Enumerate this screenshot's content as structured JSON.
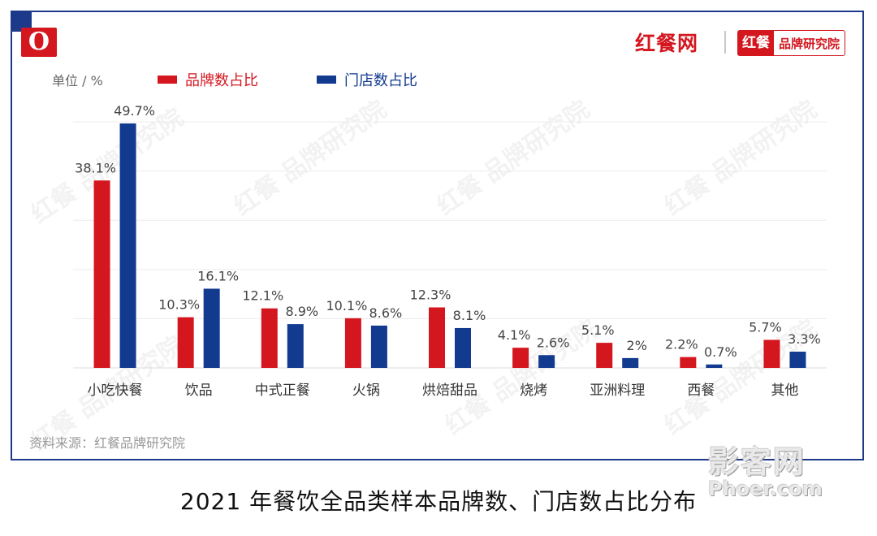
{
  "brand": {
    "logo_letter": "O",
    "name": "红餐网",
    "sub_tag": "红餐",
    "sub_text": "品牌研究院",
    "watermark": "红餐 品牌研究院"
  },
  "unit_label": "单位 / %",
  "source_note": "资料来源：红餐品牌研究院",
  "title": "2021 年餐饮全品类样本品牌数、门店数占比分布",
  "site_mark": {
    "text": "影客网",
    "url": "Phoer.com"
  },
  "colors": {
    "red": "#d4161f",
    "blue": "#123a8f",
    "frame": "#1d3a8a"
  },
  "chart_data": {
    "type": "bar",
    "categories": [
      "小吃快餐",
      "饮品",
      "中式正餐",
      "火锅",
      "烘焙甜品",
      "烧烤",
      "亚洲料理",
      "西餐",
      "其他"
    ],
    "series": [
      {
        "name": "品牌数占比",
        "color": "#d4161f",
        "values": [
          38.1,
          10.3,
          12.1,
          10.1,
          12.3,
          4.1,
          5.1,
          2.2,
          5.7
        ]
      },
      {
        "name": "门店数占比",
        "color": "#123a8f",
        "values": [
          49.7,
          16.1,
          8.9,
          8.6,
          8.1,
          2.6,
          2.0,
          0.7,
          3.3
        ]
      }
    ],
    "ylim": [
      0,
      50
    ],
    "grid": true,
    "legend_position": "top-left",
    "value_suffix": "%"
  }
}
